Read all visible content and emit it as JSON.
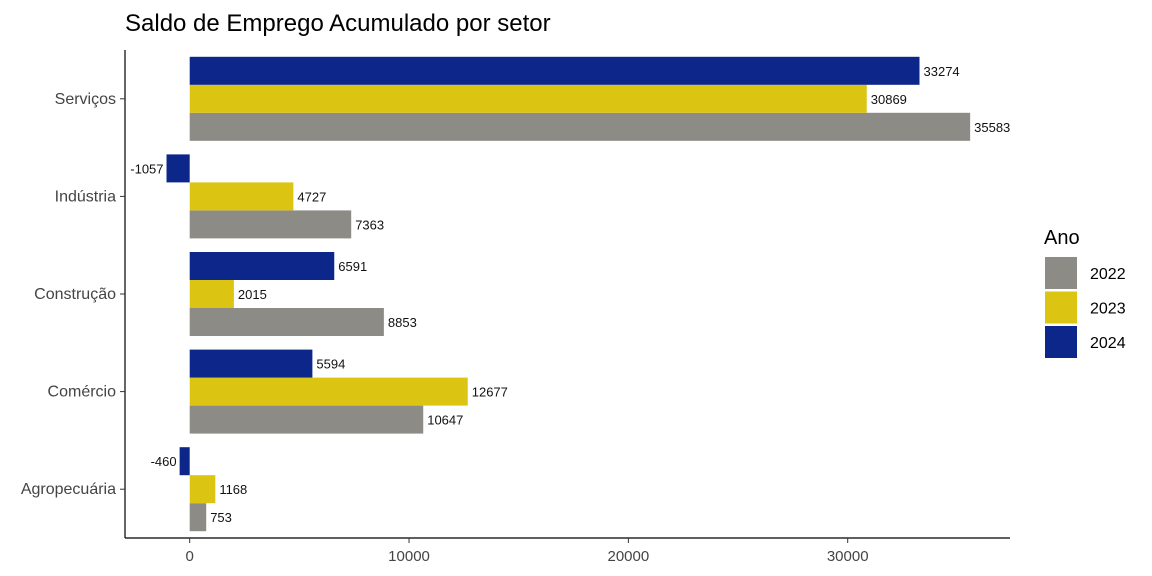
{
  "chart_data": {
    "type": "bar",
    "orientation": "horizontal",
    "title": "Saldo de Emprego Acumulado por setor",
    "xlabel": "",
    "ylabel": "",
    "categories": [
      "Serviços",
      "Indústria",
      "Construção",
      "Comércio",
      "Agropecuária"
    ],
    "series": [
      {
        "name": "2022",
        "color": "#8c8b85",
        "values": [
          35583,
          7363,
          8853,
          10647,
          753
        ]
      },
      {
        "name": "2023",
        "color": "#dcc512",
        "values": [
          30869,
          4727,
          2015,
          12677,
          1168
        ]
      },
      {
        "name": "2024",
        "color": "#0c268a",
        "values": [
          33274,
          -1057,
          6591,
          5594,
          -460
        ]
      }
    ],
    "xlim": [
      -2950,
      37400
    ],
    "xticks": [
      0,
      10000,
      20000,
      30000
    ],
    "xtick_labels": [
      "0",
      "10000",
      "20000",
      "30000"
    ],
    "grid": false,
    "legend": {
      "title": "Ano",
      "position": "right"
    }
  }
}
